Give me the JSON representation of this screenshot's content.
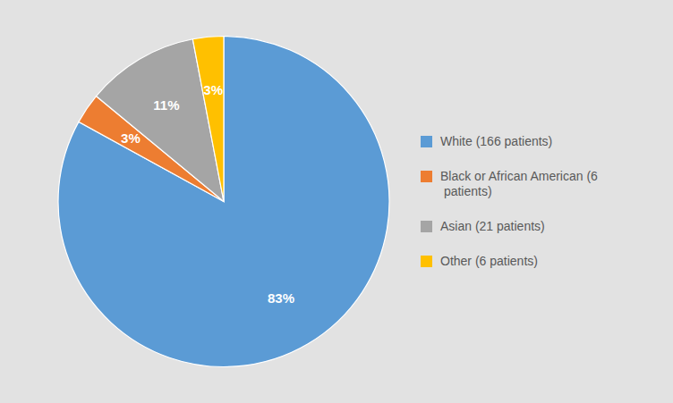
{
  "chart_data": {
    "type": "pie",
    "categories": [
      "White (166 patients)",
      "Black or African American (6\n  patients)",
      "Asian (21 patients)",
      "Other (6 patients)"
    ],
    "values": [
      83,
      3,
      11,
      3
    ],
    "value_labels": [
      "83%",
      "3%",
      "11%",
      "3%"
    ],
    "colors": [
      "#5B9BD5",
      "#ED7D31",
      "#A5A5A5",
      "#FFC000"
    ],
    "data_labels": true,
    "legend": "right"
  }
}
